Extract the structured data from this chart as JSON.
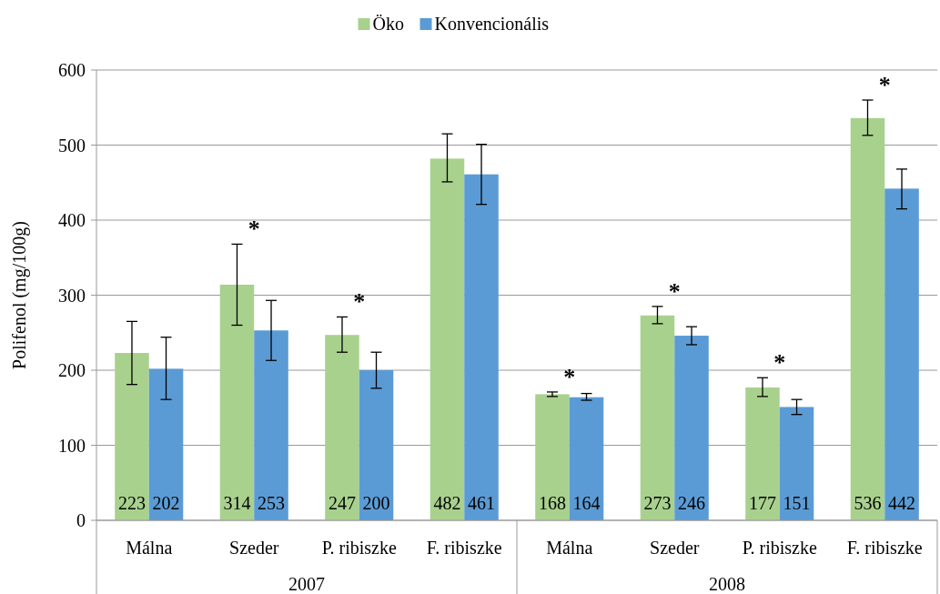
{
  "chart_data": {
    "type": "bar",
    "ylabel": "Polifenol (mg/100g)",
    "categories": [
      "Málna",
      "Szeder",
      "P. ribiszke",
      "F. ribiszke",
      "Málna",
      "Szeder",
      "P. ribiszke",
      "F. ribiszke"
    ],
    "series": [
      {
        "name": "Öko",
        "color": "#a9d18e",
        "values": [
          223,
          314,
          247,
          482,
          168,
          273,
          177,
          536
        ],
        "errors": [
          [
            181,
            265
          ],
          [
            260,
            368
          ],
          [
            224,
            271
          ],
          [
            451,
            515
          ],
          [
            165,
            171
          ],
          [
            262,
            285
          ],
          [
            165,
            190
          ],
          [
            513,
            560
          ]
        ]
      },
      {
        "name": "Konvencionális",
        "color": "#5b9bd5",
        "values": [
          202,
          253,
          200,
          461,
          164,
          246,
          151,
          442
        ],
        "errors": [
          [
            161,
            244
          ],
          [
            213,
            293
          ],
          [
            176,
            224
          ],
          [
            421,
            501
          ],
          [
            160,
            169
          ],
          [
            234,
            258
          ],
          [
            141,
            161
          ],
          [
            415,
            468
          ]
        ]
      }
    ],
    "ylim": [
      0,
      600
    ],
    "yticks": [
      0,
      100,
      200,
      300,
      400,
      500,
      600
    ],
    "grid": "y",
    "legend": "top",
    "data_labels": true,
    "annotations": [
      "2007",
      "2008",
      "*",
      "*",
      "*",
      "*",
      "*",
      "*"
    ]
  }
}
